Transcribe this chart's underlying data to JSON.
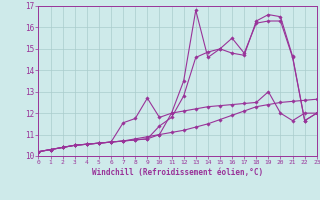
{
  "xlabel": "Windchill (Refroidissement éolien,°C)",
  "bg_color": "#ceeaea",
  "grid_color": "#aacccc",
  "line_color": "#993399",
  "xmin": 0,
  "xmax": 23,
  "ymin": 10,
  "ymax": 17,
  "yticks": [
    10,
    11,
    12,
    13,
    14,
    15,
    16,
    17
  ],
  "xticks": [
    0,
    1,
    2,
    3,
    4,
    5,
    6,
    7,
    8,
    9,
    10,
    11,
    12,
    13,
    14,
    15,
    16,
    17,
    18,
    19,
    20,
    21,
    22,
    23
  ],
  "series": [
    {
      "x": [
        0,
        1,
        2,
        3,
        4,
        5,
        6,
        7,
        8,
        9,
        10,
        11,
        12,
        13,
        14,
        15,
        16,
        17,
        18,
        19,
        20,
        21,
        22,
        23
      ],
      "y": [
        10.2,
        10.3,
        10.4,
        10.5,
        10.55,
        10.6,
        10.65,
        10.7,
        10.75,
        10.8,
        11.0,
        12.0,
        13.5,
        16.8,
        14.6,
        15.0,
        14.8,
        14.7,
        16.3,
        16.6,
        16.5,
        14.65,
        11.65,
        12.0
      ]
    },
    {
      "x": [
        0,
        1,
        2,
        3,
        4,
        5,
        6,
        7,
        8,
        9,
        10,
        11,
        12,
        13,
        14,
        15,
        16,
        17,
        18,
        19,
        20,
        21,
        22,
        23
      ],
      "y": [
        10.2,
        10.3,
        10.4,
        10.5,
        10.55,
        10.6,
        10.65,
        10.7,
        10.75,
        10.8,
        11.4,
        11.8,
        12.8,
        14.6,
        14.85,
        15.0,
        15.5,
        14.8,
        16.2,
        16.3,
        16.3,
        14.6,
        11.65,
        12.0
      ]
    },
    {
      "x": [
        0,
        1,
        2,
        3,
        4,
        5,
        6,
        7,
        8,
        9,
        10,
        11,
        12,
        13,
        14,
        15,
        16,
        17,
        18,
        19,
        20,
        21,
        22,
        23
      ],
      "y": [
        10.2,
        10.3,
        10.4,
        10.5,
        10.55,
        10.6,
        10.65,
        11.55,
        11.75,
        12.7,
        11.8,
        12.0,
        12.1,
        12.2,
        12.3,
        12.35,
        12.4,
        12.45,
        12.5,
        13.0,
        12.0,
        11.65,
        12.0,
        12.0
      ]
    },
    {
      "x": [
        0,
        1,
        2,
        3,
        4,
        5,
        6,
        7,
        8,
        9,
        10,
        11,
        12,
        13,
        14,
        15,
        16,
        17,
        18,
        19,
        20,
        21,
        22,
        23
      ],
      "y": [
        10.2,
        10.3,
        10.4,
        10.5,
        10.55,
        10.6,
        10.65,
        10.7,
        10.8,
        10.9,
        11.0,
        11.1,
        11.2,
        11.35,
        11.5,
        11.7,
        11.9,
        12.1,
        12.3,
        12.4,
        12.5,
        12.55,
        12.6,
        12.65
      ]
    }
  ]
}
